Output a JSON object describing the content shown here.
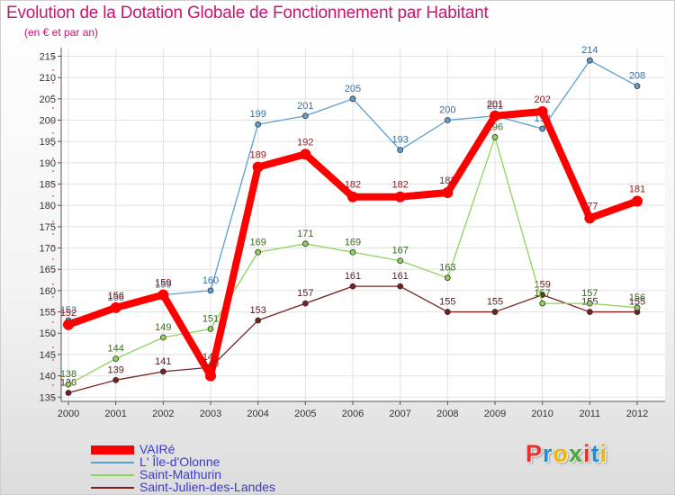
{
  "title": "Evolution de la Dotation Globale de Fonctionnement par Habitant",
  "subtitle": "(en € et par an)",
  "brand": {
    "text": "Proxiti",
    "colors": [
      "#e8312b",
      "#1a8fd6",
      "#f2b705",
      "#4aa83c",
      "#e8312b",
      "#1a8fd6",
      "#f2b705"
    ]
  },
  "chart_data": {
    "type": "line",
    "title": "Evolution de la Dotation Globale de Fonctionnement par Habitant",
    "subtitle": "(en € et par an)",
    "xlabel": "",
    "ylabel": "",
    "x": [
      "2000",
      "2001",
      "2002",
      "2003",
      "2004",
      "2005",
      "2006",
      "2007",
      "2008",
      "2009",
      "2010",
      "2011",
      "2012"
    ],
    "ylim": [
      134,
      217
    ],
    "yticks": [
      135,
      140,
      145,
      150,
      155,
      160,
      165,
      170,
      175,
      180,
      185,
      190,
      195,
      200,
      205,
      210,
      215
    ],
    "grid": true,
    "legend_position": "bottom-left",
    "series": [
      {
        "name": "Saint-Julien-des-Landes",
        "color": "#7a1f1f",
        "values": [
          136,
          139,
          141,
          142,
          153,
          157,
          161,
          161,
          155,
          155,
          159,
          155,
          155
        ]
      },
      {
        "name": "Saint-Mathurin",
        "color": "#8ed35a",
        "values": [
          138,
          144,
          149,
          151,
          169,
          171,
          169,
          167,
          163,
          196,
          157,
          157,
          156
        ]
      },
      {
        "name": "L' Île-d'Olonne",
        "color": "#5a9fd1",
        "values": [
          153,
          156,
          159,
          160,
          199,
          201,
          205,
          193,
          200,
          201,
          198,
          214,
          208
        ]
      },
      {
        "name": "VAIRé",
        "color": "#ff0000",
        "values": [
          152,
          156,
          159,
          140,
          189,
          192,
          182,
          182,
          183,
          201,
          202,
          177,
          181
        ]
      }
    ],
    "legend_order": [
      3,
      2,
      1,
      0
    ]
  }
}
